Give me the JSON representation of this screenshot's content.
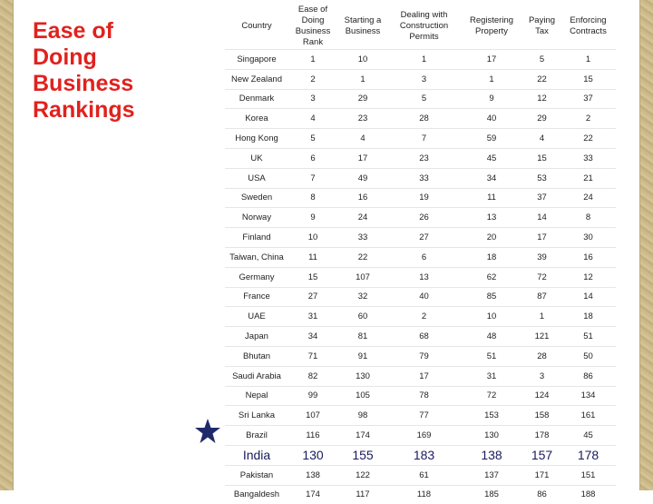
{
  "title": "Ease of Doing Business Rankings",
  "table": {
    "header": [
      "Country",
      "Ease of Doing Business Rank",
      "Starting a Business",
      "Dealing with Construction Permits",
      "Registering Property",
      "Paying Tax",
      "Enforcing Contracts"
    ],
    "rows": [
      [
        "Singapore",
        1,
        10,
        1,
        17,
        5,
        1
      ],
      [
        "New Zealand",
        2,
        1,
        3,
        1,
        22,
        15
      ],
      [
        "Denmark",
        3,
        29,
        5,
        9,
        12,
        37
      ],
      [
        "Korea",
        4,
        23,
        28,
        40,
        29,
        2
      ],
      [
        "Hong Kong",
        5,
        4,
        7,
        59,
        4,
        22
      ],
      [
        "UK",
        6,
        17,
        23,
        45,
        15,
        33
      ],
      [
        "USA",
        7,
        49,
        33,
        34,
        53,
        21
      ],
      [
        "Sweden",
        8,
        16,
        19,
        11,
        37,
        24
      ],
      [
        "Norway",
        9,
        24,
        26,
        13,
        14,
        8
      ],
      [
        "Finland",
        10,
        33,
        27,
        20,
        17,
        30
      ],
      [
        "Taiwan, China",
        11,
        22,
        6,
        18,
        39,
        16
      ],
      [
        "Germany",
        15,
        107,
        13,
        62,
        72,
        12
      ],
      [
        "France",
        27,
        32,
        40,
        85,
        87,
        14
      ],
      [
        "UAE",
        31,
        60,
        2,
        10,
        1,
        18
      ],
      [
        "Japan",
        34,
        81,
        68,
        48,
        121,
        51
      ],
      [
        "Bhutan",
        71,
        91,
        79,
        51,
        28,
        50
      ],
      [
        "Saudi Arabia",
        82,
        130,
        17,
        31,
        3,
        86
      ],
      [
        "Nepal",
        99,
        105,
        78,
        72,
        124,
        134
      ],
      [
        "Sri Lanka",
        107,
        98,
        77,
        153,
        158,
        161
      ],
      [
        "Brazil",
        116,
        174,
        169,
        130,
        178,
        45
      ],
      [
        "India",
        130,
        155,
        183,
        138,
        157,
        178
      ],
      [
        "Pakistan",
        138,
        122,
        61,
        137,
        171,
        151
      ],
      [
        "Bangaldesh",
        174,
        117,
        118,
        185,
        86,
        188
      ]
    ]
  }
}
